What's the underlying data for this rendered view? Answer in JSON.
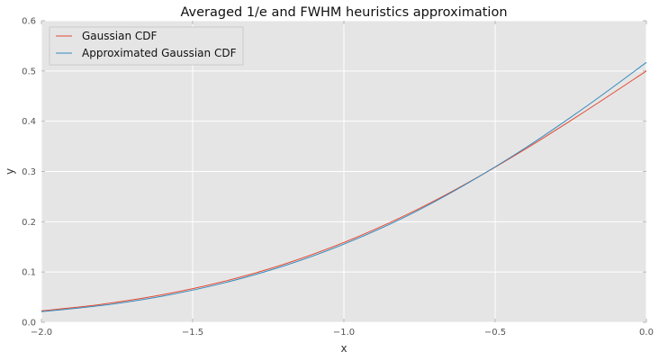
{
  "chart_data": {
    "type": "line",
    "title": "Averaged 1/e and FWHM heuristics approximation",
    "xlabel": "x",
    "ylabel": "y",
    "xlim": [
      -2.0,
      0.0
    ],
    "ylim": [
      0.0,
      0.6
    ],
    "x_ticks": [
      -2.0,
      -1.5,
      -1.0,
      -0.5,
      0.0
    ],
    "x_tick_labels": [
      "−2.0",
      "−1.5",
      "−1.0",
      "−0.5",
      "0.0"
    ],
    "y_ticks": [
      0.0,
      0.1,
      0.2,
      0.3,
      0.4,
      0.5,
      0.6
    ],
    "y_tick_labels": [
      "0.0",
      "0.1",
      "0.2",
      "0.3",
      "0.4",
      "0.5",
      "0.6"
    ],
    "grid": true,
    "legend_position": "top-left",
    "x": [
      -2.0,
      -1.8,
      -1.6,
      -1.4,
      -1.2,
      -1.0,
      -0.8,
      -0.6,
      -0.4,
      -0.2,
      0.0
    ],
    "series": [
      {
        "name": "Gaussian CDF",
        "color": "#e24a33",
        "values": [
          0.0228,
          0.0359,
          0.0548,
          0.0808,
          0.1151,
          0.1587,
          0.2119,
          0.2743,
          0.3446,
          0.4207,
          0.5
        ]
      },
      {
        "name": "Approximated Gaussian CDF",
        "color": "#348abd",
        "values": [
          0.021,
          0.0335,
          0.052,
          0.0778,
          0.112,
          0.1555,
          0.209,
          0.2735,
          0.347,
          0.429,
          0.517
        ]
      }
    ]
  }
}
